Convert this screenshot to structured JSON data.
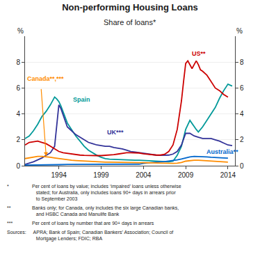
{
  "chart_data": {
    "type": "line",
    "title": "Non-performing Housing Loans",
    "subtitle": "Share of loans*",
    "y_label": "%",
    "y2_label": "%",
    "xlim": [
      1990.0,
      2014.83
    ],
    "xticks": [
      1994,
      1999,
      2004,
      2009,
      2014
    ],
    "ylim": [
      0,
      10
    ],
    "yticks": [
      0,
      2,
      4,
      6,
      8
    ],
    "y2lim": [
      0,
      10
    ],
    "y2ticks": [
      0,
      2,
      4,
      6,
      8
    ],
    "grid": true,
    "legend": false,
    "footnotes": [
      {
        "bullet": "*",
        "text": "Per cent of loans by value; includes ‘impaired’ loans unless otherwise\n   stated; for Australia, only includes loans 90+ days in arrears prior\n   to September 2003"
      },
      {
        "bullet": "**",
        "text": "Banks only; for Canada, only includes the six large Canadian banks,\n   and HSBC Canada and Manulife Bank"
      },
      {
        "bullet": "***",
        "text": "Per cent of loans by number that are 90+ days in arrears"
      },
      {
        "bullet": "Sources:",
        "text": " APRA; Bank of Spain; Canadian Bankers’ Association; Council of\n   Mortgage Lenders; FDIC; RBA"
      }
    ],
    "series": [
      {
        "name": "Spain",
        "color": "#009999",
        "label_at": [
          1995.5,
          5.1
        ],
        "x": [
          1990.0,
          1990.5,
          1991.0,
          1991.5,
          1992.0,
          1992.5,
          1993.0,
          1993.25,
          1993.5,
          1993.75,
          1994.0,
          1994.25,
          1994.5,
          1994.75,
          1995.0,
          1995.5,
          1996.0,
          1996.5,
          1997.0,
          1997.5,
          1998.0,
          1998.5,
          1999.0,
          1999.5,
          2000.0,
          2000.5,
          2001.0,
          2001.5,
          2002.0,
          2002.5,
          2003.0,
          2003.5,
          2004.0,
          2004.5,
          2005.0,
          2005.5,
          2006.0,
          2006.5,
          2007.0,
          2007.5,
          2008.0,
          2008.5,
          2009.0,
          2009.5,
          2010.0,
          2010.25,
          2010.5,
          2010.75,
          2011.0,
          2011.5,
          2012.0,
          2012.5,
          2013.0,
          2013.5,
          2014.0,
          2014.5
        ],
        "values": [
          2.1,
          2.3,
          2.7,
          3.2,
          3.8,
          4.2,
          4.7,
          5.0,
          5.3,
          5.15,
          4.95,
          4.6,
          4.2,
          3.75,
          3.3,
          2.8,
          2.3,
          1.9,
          1.5,
          1.2,
          1.0,
          0.8,
          0.65,
          0.55,
          0.5,
          0.48,
          0.47,
          0.45,
          0.42,
          0.42,
          0.42,
          0.42,
          0.4,
          0.38,
          0.35,
          0.35,
          0.32,
          0.3,
          0.3,
          0.35,
          0.8,
          1.5,
          2.8,
          3.5,
          3.0,
          2.8,
          2.6,
          2.8,
          3.0,
          3.5,
          4.0,
          4.5,
          5.2,
          5.8,
          6.3,
          6.15
        ]
      },
      {
        "name": "UK***",
        "color": "#333399",
        "label_at": [
          1999.5,
          2.6
        ],
        "x": [
          1990.0,
          1991.0,
          1992.0,
          1993.0,
          1993.5,
          1994.0,
          1994.25,
          1994.5,
          1994.75,
          1995.0,
          1995.5,
          1996.0,
          1996.5,
          1997.0,
          1997.5,
          1998.0,
          1998.5,
          1999.0,
          1999.5,
          2000.0,
          2000.5,
          2001.0,
          2001.5,
          2002.0,
          2002.5,
          2003.0,
          2003.5,
          2004.0,
          2004.5,
          2005.0,
          2005.5,
          2006.0,
          2006.5,
          2007.0,
          2007.5,
          2008.0,
          2008.5,
          2009.0,
          2009.5,
          2010.0,
          2010.5,
          2011.0,
          2011.5,
          2012.0,
          2012.5,
          2013.0,
          2013.5,
          2014.0,
          2014.5
        ],
        "values": [
          0.1,
          0.3,
          0.6,
          1.0,
          1.5,
          4.7,
          4.4,
          3.9,
          3.4,
          3.0,
          2.7,
          2.4,
          2.2,
          2.0,
          1.8,
          1.7,
          1.6,
          1.55,
          1.5,
          1.5,
          1.4,
          1.35,
          1.3,
          1.2,
          1.1,
          1.05,
          1.0,
          0.95,
          0.9,
          0.85,
          0.82,
          0.8,
          0.8,
          0.82,
          0.9,
          1.1,
          1.6,
          2.5,
          2.5,
          2.3,
          2.2,
          2.1,
          2.1,
          2.1,
          2.0,
          1.9,
          1.75,
          1.6,
          1.55
        ]
      },
      {
        "name": "US**",
        "color": "#CC0000",
        "label_at": [
          2009.6,
          8.65
        ],
        "x": [
          1990.0,
          1990.5,
          1991.0,
          1991.5,
          1992.0,
          1992.5,
          1993.0,
          1993.5,
          1994.0,
          1994.5,
          1995.0,
          1995.5,
          1996.0,
          1996.5,
          1997.0,
          1997.5,
          1998.0,
          1998.5,
          1999.0,
          1999.5,
          2000.0,
          2000.5,
          2001.0,
          2001.5,
          2002.0,
          2002.5,
          2003.0,
          2003.5,
          2004.0,
          2004.5,
          2005.0,
          2005.5,
          2006.0,
          2006.5,
          2007.0,
          2007.5,
          2008.0,
          2008.25,
          2008.5,
          2008.75,
          2009.0,
          2009.25,
          2009.5,
          2009.75,
          2010.0,
          2010.25,
          2010.5,
          2010.75,
          2011.0,
          2011.5,
          2012.0,
          2012.5,
          2013.0,
          2013.5,
          2014.0
        ],
        "values": [
          1.6,
          1.8,
          1.85,
          1.9,
          1.8,
          1.7,
          1.5,
          1.3,
          1.1,
          1.0,
          0.95,
          0.9,
          0.85,
          0.82,
          0.8,
          0.78,
          0.78,
          0.78,
          0.78,
          0.8,
          0.82,
          0.85,
          0.9,
          0.95,
          1.0,
          1.0,
          1.0,
          0.98,
          0.92,
          0.88,
          0.85,
          0.82,
          0.82,
          0.88,
          1.1,
          1.6,
          2.8,
          3.8,
          5.0,
          6.5,
          7.9,
          8.1,
          7.8,
          7.5,
          7.8,
          8.1,
          7.8,
          7.4,
          7.3,
          7.0,
          6.5,
          6.0,
          5.8,
          5.5,
          5.3
        ]
      },
      {
        "name": "Australia**",
        "color": "#0066CC",
        "label_at": [
          2011.3,
          1.05
        ],
        "x": [
          1990.0,
          1991.0,
          1992.0,
          1993.0,
          1994.0,
          1995.0,
          1996.0,
          1997.0,
          1998.0,
          1999.0,
          2000.0,
          2001.0,
          2002.0,
          2003.0,
          2003.5,
          2004.0,
          2004.5,
          2005.0,
          2005.5,
          2006.0,
          2006.5,
          2007.0,
          2007.5,
          2008.0,
          2008.5,
          2009.0,
          2009.5,
          2010.0,
          2010.5,
          2011.0,
          2011.5,
          2012.0,
          2012.5,
          2013.0,
          2013.5,
          2014.0
        ],
        "values": [
          0.05,
          0.05,
          0.08,
          0.08,
          0.08,
          0.1,
          0.1,
          0.12,
          0.12,
          0.12,
          0.12,
          0.12,
          0.12,
          0.12,
          0.12,
          0.18,
          0.22,
          0.25,
          0.28,
          0.3,
          0.32,
          0.35,
          0.38,
          0.45,
          0.52,
          0.62,
          0.68,
          0.72,
          0.72,
          0.7,
          0.68,
          0.65,
          0.62,
          0.6,
          0.6,
          0.58
        ]
      },
      {
        "name": "Canada**,***",
        "color": "#FF8C00",
        "label_at": [
          1990.05,
          6.7
        ],
        "arrow": {
          "from": [
            1991.9,
            6.0
          ],
          "to": [
            1992.5,
            0.72
          ]
        },
        "x": [
          1990.0,
          1990.5,
          1991.0,
          1991.5,
          1992.0,
          1992.5,
          1993.0,
          1993.5,
          1994.0,
          1994.5,
          1995.0,
          1995.5,
          1996.0,
          1996.5,
          1997.0,
          1997.5,
          1998.0,
          1998.5,
          1999.0,
          1999.5,
          2000.0,
          2000.5,
          2001.0,
          2001.5,
          2002.0,
          2002.5,
          2003.0,
          2003.5,
          2004.0,
          2004.5,
          2005.0,
          2005.5,
          2006.0,
          2006.5,
          2007.0,
          2007.5,
          2008.0,
          2008.5,
          2009.0,
          2009.5,
          2010.0,
          2010.5,
          2011.0,
          2011.5,
          2012.0,
          2012.5,
          2013.0,
          2013.5,
          2014.0
        ],
        "values": [
          0.55,
          0.62,
          0.68,
          0.72,
          0.72,
          0.7,
          0.65,
          0.6,
          0.55,
          0.5,
          0.45,
          0.42,
          0.4,
          0.38,
          0.35,
          0.32,
          0.3,
          0.28,
          0.28,
          0.28,
          0.28,
          0.28,
          0.28,
          0.28,
          0.27,
          0.26,
          0.25,
          0.24,
          0.23,
          0.22,
          0.21,
          0.2,
          0.19,
          0.18,
          0.18,
          0.18,
          0.2,
          0.25,
          0.35,
          0.4,
          0.42,
          0.42,
          0.4,
          0.38,
          0.36,
          0.34,
          0.32,
          0.3,
          0.28
        ]
      }
    ]
  }
}
